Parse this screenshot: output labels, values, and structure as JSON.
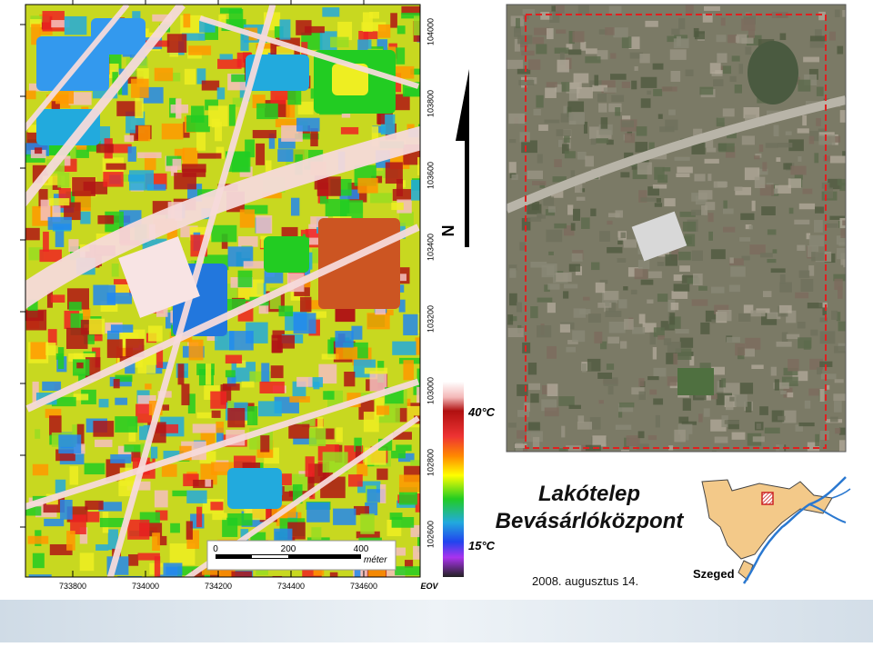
{
  "map": {
    "x_labels": [
      "733800",
      "734000",
      "734200",
      "734400",
      "734600"
    ],
    "x_unit": "EOV",
    "y_labels": [
      "104000",
      "103800",
      "103600",
      "103400",
      "103200",
      "103000",
      "102800",
      "102600"
    ],
    "scale_bar": {
      "labels": [
        "0",
        "200",
        "400"
      ],
      "unit": "méter"
    },
    "north": "N",
    "legend": {
      "max": "40°C",
      "min": "15°C"
    },
    "title": [
      "Lakótelep",
      "Bevásárlóközpont"
    ],
    "date": "2008. augusztus 14.",
    "inset_label": "Szeged"
  }
}
